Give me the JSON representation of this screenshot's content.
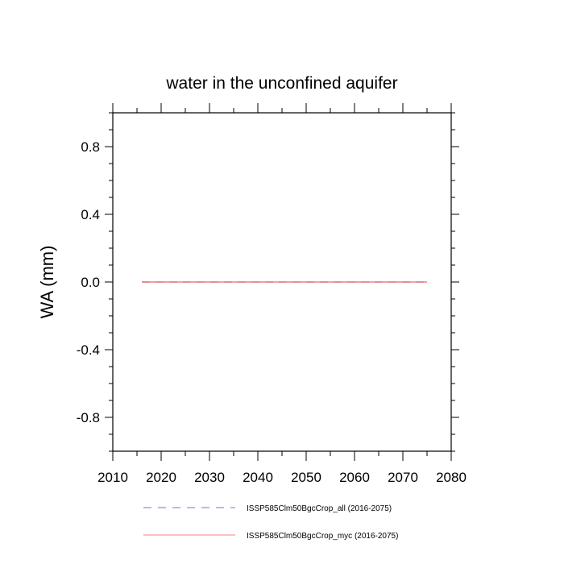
{
  "chart_data": {
    "type": "line",
    "title": "water in the unconfined aquifer",
    "xlabel": "",
    "ylabel": "WA  (mm)",
    "xlim": [
      2010,
      2080
    ],
    "ylim": [
      -1.0,
      1.0
    ],
    "x_ticks": [
      2010,
      2020,
      2030,
      2040,
      2050,
      2060,
      2070,
      2080
    ],
    "x_tick_labels": [
      "2010",
      "2020",
      "2030",
      "2040",
      "2050",
      "2060",
      "2070",
      "2080"
    ],
    "y_ticks": [
      0.8,
      0.4,
      0.0,
      -0.4,
      -0.8
    ],
    "y_tick_labels": [
      "0.8",
      "0.4",
      "0.0",
      "-0.4",
      "-0.8"
    ],
    "grid": false,
    "legend_position": "bottom",
    "series": [
      {
        "name": "ISSP585Clm50BgcCrop_all (2016-2075)",
        "color": "#7070e0",
        "dash": "dashed",
        "x": [
          2016,
          2075
        ],
        "y": [
          0.0,
          0.0
        ]
      },
      {
        "name": "ISSP585Clm50BgcCrop_myc (2016-2075)",
        "color": "#f08080",
        "dash": "solid",
        "x": [
          2016,
          2075
        ],
        "y": [
          0.0,
          0.0
        ]
      }
    ]
  }
}
